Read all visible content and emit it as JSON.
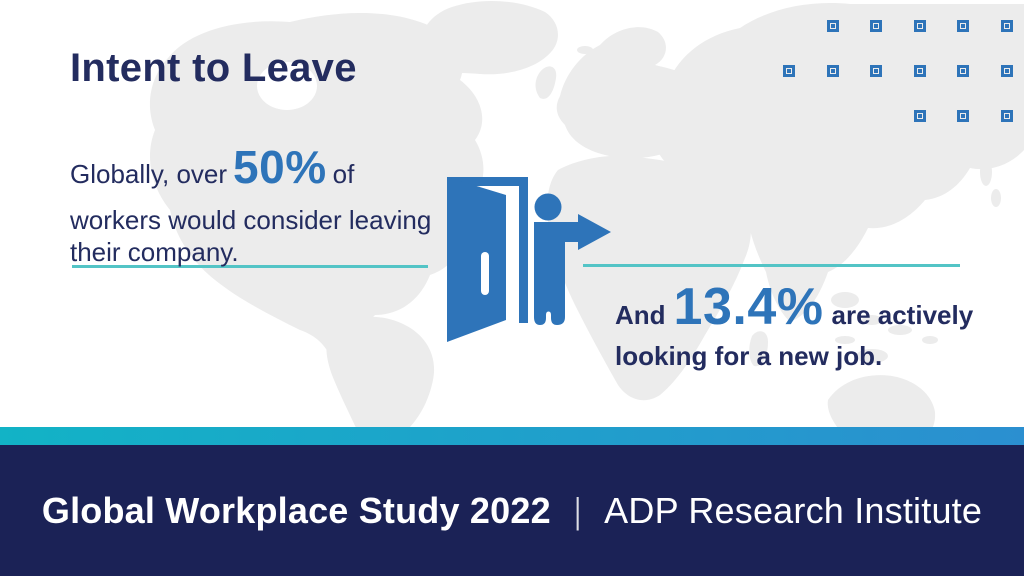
{
  "colors": {
    "navy": "#232c5f",
    "blue": "#2e74b9",
    "teal": "#53c4c6",
    "map": "#ececec",
    "background": "#ffffff",
    "gradient-left": "#12b3c6",
    "gradient-right": "#2b8fd0",
    "footer-bg": "#1b2256",
    "footer-text": "#ffffff"
  },
  "title": "Intent to Leave",
  "stat_left": {
    "pre": "Globally, over",
    "value": "50%",
    "post": "of",
    "line2": "workers would consider leaving",
    "line3": "their company."
  },
  "stat_right": {
    "pre": "And",
    "value": "13.4%",
    "post": "are actively",
    "line2": "looking for a new job."
  },
  "footer": {
    "study": "Global Workplace Study 2022",
    "divider": "|",
    "org": "ADP Research Institute"
  },
  "icons": {
    "door_icon": "person-exiting-open-door-with-right-arrow",
    "decor_squares": "hollow-square-grid"
  },
  "decor": {
    "squares": {
      "rows": [
        [
          0,
          1,
          1,
          1,
          1,
          1
        ],
        [
          1,
          1,
          1,
          1,
          1,
          1
        ],
        [
          0,
          0,
          0,
          1,
          1,
          1
        ]
      ]
    }
  }
}
